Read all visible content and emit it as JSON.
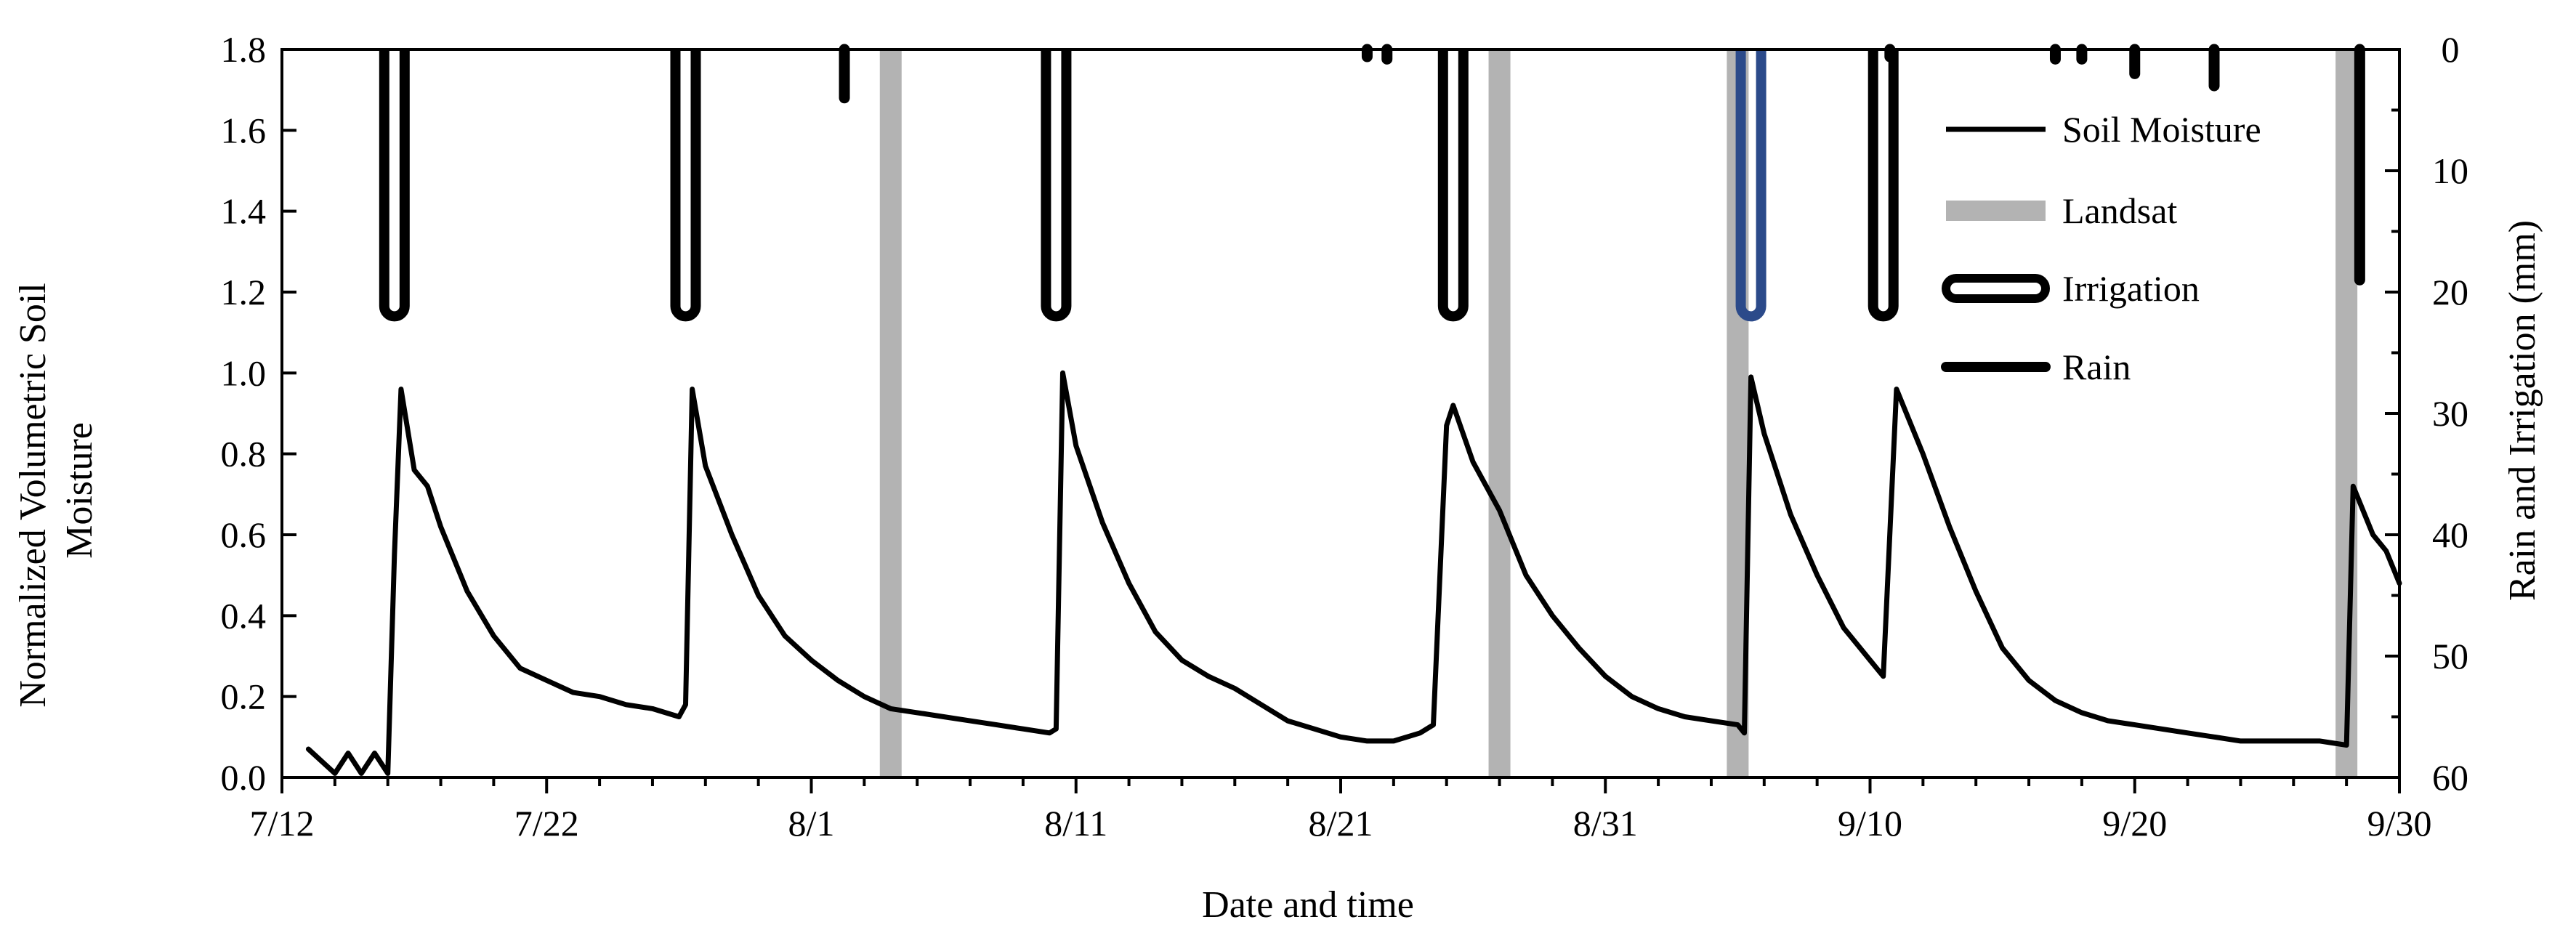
{
  "chart_data": {
    "type": "line",
    "xlabel": "Date and time",
    "ylabel": "Normalized Volumetric Soil Moisture",
    "y2label": "Rain and Irrigation (mm)",
    "xlim": [
      "2019-07-12",
      "2019-09-30"
    ],
    "ylim": [
      0,
      1.8
    ],
    "y2lim": [
      0,
      60
    ],
    "y2_inverted": true,
    "x_ticks": [
      "7/12",
      "7/22",
      "8/1",
      "8/11",
      "8/21",
      "8/31",
      "9/10",
      "9/20",
      "9/30"
    ],
    "y_ticks": [
      "0.0",
      "0.2",
      "0.4",
      "0.6",
      "0.8",
      "1.0",
      "1.2",
      "1.4",
      "1.6",
      "1.8"
    ],
    "y2_ticks": [
      "0",
      "10",
      "20",
      "30",
      "40",
      "50",
      "60"
    ],
    "grid": false,
    "legend": {
      "position": "top-right",
      "entries": [
        "Soil Moisture",
        "Landsat",
        "Irrigation",
        "Rain"
      ]
    },
    "colors": {
      "soil_moisture": "#000000",
      "landsat": "#b3b3b3",
      "irrigation": "#000000",
      "irrigation_highlight": "#2b4a8a",
      "rain": "#000000"
    },
    "series": [
      {
        "name": "Soil Moisture",
        "points": [
          [
            "2019-07-13",
            0.07
          ],
          [
            "2019-07-14",
            0.01
          ],
          [
            "2019-07-14T12:00",
            0.06
          ],
          [
            "2019-07-15",
            0.01
          ],
          [
            "2019-07-15T12:00",
            0.06
          ],
          [
            "2019-07-16",
            0.01
          ],
          [
            "2019-07-16T06:00",
            0.55
          ],
          [
            "2019-07-16T12:00",
            0.96
          ],
          [
            "2019-07-17",
            0.76
          ],
          [
            "2019-07-17T12:00",
            0.72
          ],
          [
            "2019-07-18",
            0.62
          ],
          [
            "2019-07-19",
            0.46
          ],
          [
            "2019-07-20",
            0.35
          ],
          [
            "2019-07-21",
            0.27
          ],
          [
            "2019-07-22",
            0.24
          ],
          [
            "2019-07-23",
            0.21
          ],
          [
            "2019-07-24",
            0.2
          ],
          [
            "2019-07-25",
            0.18
          ],
          [
            "2019-07-26",
            0.17
          ],
          [
            "2019-07-27",
            0.15
          ],
          [
            "2019-07-27T06:00",
            0.18
          ],
          [
            "2019-07-27T12:00",
            0.96
          ],
          [
            "2019-07-28",
            0.77
          ],
          [
            "2019-07-29",
            0.6
          ],
          [
            "2019-07-30",
            0.45
          ],
          [
            "2019-07-31",
            0.35
          ],
          [
            "2019-08-01",
            0.29
          ],
          [
            "2019-08-02",
            0.24
          ],
          [
            "2019-08-03",
            0.2
          ],
          [
            "2019-08-04",
            0.17
          ],
          [
            "2019-08-05",
            0.16
          ],
          [
            "2019-08-06",
            0.15
          ],
          [
            "2019-08-07",
            0.14
          ],
          [
            "2019-08-08",
            0.13
          ],
          [
            "2019-08-09",
            0.12
          ],
          [
            "2019-08-10",
            0.11
          ],
          [
            "2019-08-10T06:00",
            0.12
          ],
          [
            "2019-08-10T12:00",
            1.0
          ],
          [
            "2019-08-11",
            0.82
          ],
          [
            "2019-08-12",
            0.63
          ],
          [
            "2019-08-13",
            0.48
          ],
          [
            "2019-08-14",
            0.36
          ],
          [
            "2019-08-15",
            0.29
          ],
          [
            "2019-08-16",
            0.25
          ],
          [
            "2019-08-17",
            0.22
          ],
          [
            "2019-08-18",
            0.18
          ],
          [
            "2019-08-19",
            0.14
          ],
          [
            "2019-08-20",
            0.12
          ],
          [
            "2019-08-21",
            0.1
          ],
          [
            "2019-08-22",
            0.09
          ],
          [
            "2019-08-23",
            0.09
          ],
          [
            "2019-08-24",
            0.11
          ],
          [
            "2019-08-24T12:00",
            0.13
          ],
          [
            "2019-08-25",
            0.87
          ],
          [
            "2019-08-25T06:00",
            0.92
          ],
          [
            "2019-08-26",
            0.78
          ],
          [
            "2019-08-27",
            0.66
          ],
          [
            "2019-08-28",
            0.5
          ],
          [
            "2019-08-29",
            0.4
          ],
          [
            "2019-08-30",
            0.32
          ],
          [
            "2019-08-31",
            0.25
          ],
          [
            "2019-09-01",
            0.2
          ],
          [
            "2019-09-02",
            0.17
          ],
          [
            "2019-09-03",
            0.15
          ],
          [
            "2019-09-04",
            0.14
          ],
          [
            "2019-09-05",
            0.13
          ],
          [
            "2019-09-05T06:00",
            0.11
          ],
          [
            "2019-09-05T12:00",
            0.99
          ],
          [
            "2019-09-06",
            0.85
          ],
          [
            "2019-09-07",
            0.65
          ],
          [
            "2019-09-08",
            0.5
          ],
          [
            "2019-09-09",
            0.37
          ],
          [
            "2019-09-10",
            0.29
          ],
          [
            "2019-09-10T12:00",
            0.25
          ],
          [
            "2019-09-11",
            0.96
          ],
          [
            "2019-09-12",
            0.8
          ],
          [
            "2019-09-13",
            0.62
          ],
          [
            "2019-09-14",
            0.46
          ],
          [
            "2019-09-15",
            0.32
          ],
          [
            "2019-09-16",
            0.24
          ],
          [
            "2019-09-17",
            0.19
          ],
          [
            "2019-09-18",
            0.16
          ],
          [
            "2019-09-19",
            0.14
          ],
          [
            "2019-09-20",
            0.13
          ],
          [
            "2019-09-21",
            0.12
          ],
          [
            "2019-09-22",
            0.11
          ],
          [
            "2019-09-23",
            0.1
          ],
          [
            "2019-09-24",
            0.09
          ],
          [
            "2019-09-25",
            0.09
          ],
          [
            "2019-09-26",
            0.09
          ],
          [
            "2019-09-27",
            0.09
          ],
          [
            "2019-09-28",
            0.08
          ],
          [
            "2019-09-28T06:00",
            0.72
          ],
          [
            "2019-09-29",
            0.6
          ],
          [
            "2019-09-29T12:00",
            0.56
          ],
          [
            "2019-09-30",
            0.48
          ]
        ]
      },
      {
        "name": "Landsat",
        "dates": [
          "2019-08-04",
          "2019-08-27",
          "2019-09-05",
          "2019-09-28"
        ]
      },
      {
        "name": "Irrigation",
        "events": [
          {
            "date": "2019-07-16T06:00",
            "mm": 22
          },
          {
            "date": "2019-07-27T06:00",
            "mm": 22
          },
          {
            "date": "2019-08-10T06:00",
            "mm": 22
          },
          {
            "date": "2019-08-25T06:00",
            "mm": 22
          },
          {
            "date": "2019-09-05T12:00",
            "mm": 22,
            "highlight": true
          },
          {
            "date": "2019-09-10T12:00",
            "mm": 22
          }
        ]
      },
      {
        "name": "Rain",
        "events": [
          {
            "date": "2019-08-02T06:00",
            "mm": 4
          },
          {
            "date": "2019-08-22",
            "mm": 0.6
          },
          {
            "date": "2019-08-22T18:00",
            "mm": 0.8
          },
          {
            "date": "2019-09-10T18:00",
            "mm": 0.5
          },
          {
            "date": "2019-09-17",
            "mm": 0.8
          },
          {
            "date": "2019-09-18",
            "mm": 0.8
          },
          {
            "date": "2019-09-20",
            "mm": 2
          },
          {
            "date": "2019-09-23",
            "mm": 3
          },
          {
            "date": "2019-09-28T12:00",
            "mm": 19
          }
        ]
      }
    ]
  }
}
